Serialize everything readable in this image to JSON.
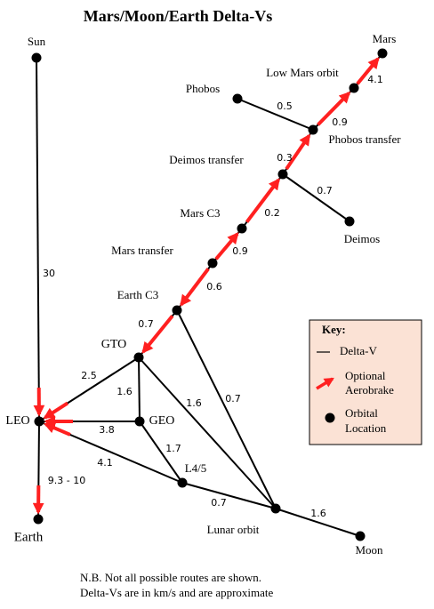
{
  "title": "Mars/Moon/Earth Delta-Vs",
  "nodes": [
    {
      "label": "Sun"
    },
    {
      "label": "LEO"
    },
    {
      "label": "Earth"
    },
    {
      "label": "GTO"
    },
    {
      "label": "GEO"
    },
    {
      "label": "L4/5"
    },
    {
      "label": "Lunar orbit"
    },
    {
      "label": "Moon"
    },
    {
      "label": "Earth C3"
    },
    {
      "label": "Mars transfer"
    },
    {
      "label": "Mars C3"
    },
    {
      "label": "Deimos transfer"
    },
    {
      "label": "Deimos"
    },
    {
      "label": "Phobos transfer"
    },
    {
      "label": "Phobos"
    },
    {
      "label": "Low Mars orbit"
    },
    {
      "label": "Mars"
    }
  ],
  "edges": [
    {
      "label": "30"
    },
    {
      "label": "9.3 - 10"
    },
    {
      "label": "2.5"
    },
    {
      "label": "3.8"
    },
    {
      "label": "4.1"
    },
    {
      "label": "1.6"
    },
    {
      "label": "1.7"
    },
    {
      "label": "1.6"
    },
    {
      "label": "0.7"
    },
    {
      "label": "0.7"
    },
    {
      "label": "1.6"
    },
    {
      "label": "0.7"
    },
    {
      "label": "0.6"
    },
    {
      "label": "0.9"
    },
    {
      "label": "0.2"
    },
    {
      "label": "0.7"
    },
    {
      "label": "0.3"
    },
    {
      "label": "0.5"
    },
    {
      "label": "0.9"
    },
    {
      "label": "4.1"
    }
  ],
  "key": {
    "title": "Key:",
    "delta_v": "Delta-V",
    "aerobrake": [
      "Optional",
      "Aerobrake"
    ],
    "location": [
      "Orbital",
      "Location"
    ]
  },
  "notes": [
    "N.B. Not all possible routes are shown.",
    "Delta-Vs are in km/s and are approximate"
  ]
}
